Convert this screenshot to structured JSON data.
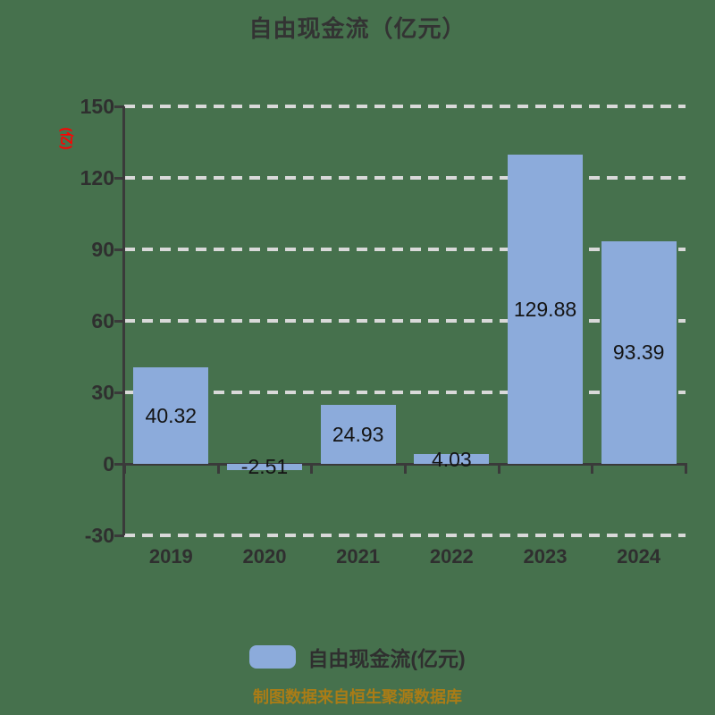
{
  "title": "自由现金流（亿元）",
  "y_axis": {
    "unit_label": "(亿)",
    "unit_label_color": "#ff0000",
    "ticks": [
      150,
      120,
      90,
      60,
      30,
      0,
      -30
    ]
  },
  "chart_data": {
    "type": "bar",
    "categories": [
      "2019",
      "2020",
      "2021",
      "2022",
      "2023",
      "2024"
    ],
    "values": [
      40.32,
      -2.51,
      24.93,
      4.03,
      129.88,
      93.39
    ],
    "value_labels": [
      "40.32",
      "-2.51",
      "24.93",
      "4.03",
      "129.88",
      "93.39"
    ],
    "title": "自由现金流（亿元）",
    "xlabel": "",
    "ylabel": "(亿)",
    "ylim": [
      -30,
      150
    ],
    "y_tick_step": 30,
    "grid": true,
    "gridline_style": "dashed",
    "legend_position": "bottom",
    "series_name": "自由现金流(亿元)"
  },
  "legend": {
    "label": "自由现金流(亿元)",
    "swatch_color": "#8cabdb"
  },
  "footer": {
    "text": "制图数据来自恒生聚源数据库"
  },
  "colors": {
    "background": "#46714d",
    "bar": "#8cabdb",
    "gridline": "#d9d9d9",
    "axis": "#3a3a3a",
    "title_text": "#333333",
    "tick_text": "#2f2f2f",
    "value_text": "#141414",
    "footer_text": "#aa7c16"
  }
}
